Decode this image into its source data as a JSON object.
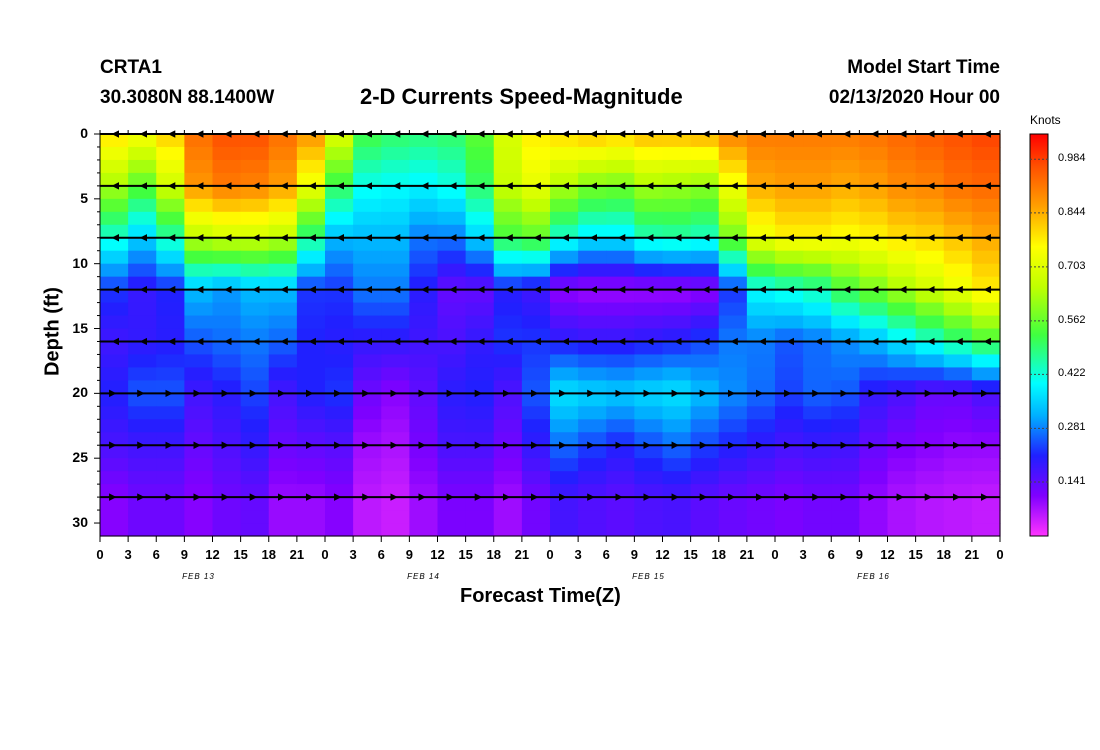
{
  "header": {
    "station": "CRTA1",
    "coords": "30.3080N 88.1400W",
    "title": "2-D Currents Speed-Magnitude",
    "start_label": "Model Start Time",
    "start_time": "02/13/2020 Hour 00"
  },
  "chart_data": {
    "type": "heatmap",
    "title": "2-D Currents Speed-Magnitude",
    "xlabel": "Forecast Time(Z)",
    "ylabel": "Depth (ft)",
    "x_range_hours": [
      0,
      96
    ],
    "y_range_ft": [
      0,
      31
    ],
    "x_tick_labels": [
      "0",
      "3",
      "6",
      "9",
      "12",
      "15",
      "18",
      "21",
      "0",
      "3",
      "6",
      "9",
      "12",
      "15",
      "18",
      "21",
      "0",
      "3",
      "6",
      "9",
      "12",
      "15",
      "18",
      "21",
      "0",
      "3",
      "6",
      "9",
      "12",
      "15",
      "18",
      "21",
      "0"
    ],
    "y_ticks": [
      0,
      5,
      10,
      15,
      20,
      25,
      30
    ],
    "date_labels": [
      {
        "label": "FEB 13",
        "hour": 10.5
      },
      {
        "label": "FEB 14",
        "hour": 34.5
      },
      {
        "label": "FEB 15",
        "hour": 58.5
      },
      {
        "label": "FEB 16",
        "hour": 82.5
      }
    ],
    "colorbar": {
      "unit": "Knots",
      "ticks": [
        "0.984",
        "0.844",
        "0.703",
        "0.562",
        "0.422",
        "0.281",
        "0.141"
      ],
      "range": [
        0,
        1.05
      ]
    },
    "depth_levels_ft": [
      0,
      4,
      8,
      12,
      16,
      20,
      24,
      28
    ],
    "speed_grid_note": "approximate speed (knots) per depth level every 3 hours",
    "speed_levels": [
      {
        "depth": 0,
        "values": [
          0.8,
          0.78,
          0.72,
          0.9,
          0.95,
          0.98,
          0.95,
          0.9,
          0.85,
          0.55,
          0.5,
          0.5,
          0.48,
          0.52,
          0.58,
          0.8,
          0.75,
          0.85,
          0.8,
          0.82,
          0.85,
          0.82,
          0.88,
          0.92,
          0.9,
          0.92,
          0.9,
          0.92,
          0.92,
          0.95,
          0.95,
          0.98,
          0.98
        ]
      },
      {
        "depth": 4,
        "values": [
          0.65,
          0.6,
          0.5,
          0.85,
          0.9,
          0.92,
          0.88,
          0.85,
          0.6,
          0.42,
          0.4,
          0.4,
          0.38,
          0.45,
          0.55,
          0.78,
          0.65,
          0.62,
          0.55,
          0.6,
          0.65,
          0.58,
          0.62,
          0.85,
          0.85,
          0.88,
          0.85,
          0.85,
          0.88,
          0.9,
          0.9,
          0.95,
          0.92
        ]
      },
      {
        "depth": 8,
        "values": [
          0.45,
          0.4,
          0.3,
          0.6,
          0.7,
          0.65,
          0.7,
          0.6,
          0.35,
          0.3,
          0.35,
          0.3,
          0.25,
          0.3,
          0.4,
          0.65,
          0.45,
          0.4,
          0.35,
          0.4,
          0.48,
          0.42,
          0.45,
          0.7,
          0.75,
          0.78,
          0.75,
          0.75,
          0.78,
          0.8,
          0.8,
          0.85,
          0.85
        ]
      },
      {
        "depth": 12,
        "values": [
          0.2,
          0.25,
          0.12,
          0.3,
          0.35,
          0.25,
          0.4,
          0.25,
          0.2,
          0.25,
          0.3,
          0.25,
          0.15,
          0.12,
          0.15,
          0.25,
          0.1,
          0.08,
          0.08,
          0.08,
          0.08,
          0.08,
          0.1,
          0.35,
          0.45,
          0.4,
          0.5,
          0.55,
          0.6,
          0.65,
          0.7,
          0.75,
          0.8
        ]
      },
      {
        "depth": 16,
        "values": [
          0.15,
          0.2,
          0.18,
          0.22,
          0.28,
          0.25,
          0.3,
          0.22,
          0.2,
          0.2,
          0.18,
          0.2,
          0.15,
          0.18,
          0.2,
          0.25,
          0.2,
          0.2,
          0.18,
          0.2,
          0.2,
          0.22,
          0.25,
          0.3,
          0.25,
          0.25,
          0.28,
          0.3,
          0.35,
          0.4,
          0.45,
          0.5,
          0.55
        ]
      },
      {
        "depth": 20,
        "values": [
          0.22,
          0.2,
          0.3,
          0.2,
          0.15,
          0.25,
          0.22,
          0.12,
          0.3,
          0.15,
          0.1,
          0.1,
          0.18,
          0.22,
          0.2,
          0.12,
          0.38,
          0.36,
          0.35,
          0.34,
          0.38,
          0.36,
          0.3,
          0.28,
          0.25,
          0.22,
          0.3,
          0.2,
          0.18,
          0.15,
          0.12,
          0.15,
          0.18
        ]
      },
      {
        "depth": 24,
        "values": [
          0.18,
          0.15,
          0.2,
          0.15,
          0.12,
          0.2,
          0.18,
          0.08,
          0.2,
          0.1,
          0.06,
          0.08,
          0.15,
          0.18,
          0.15,
          0.1,
          0.28,
          0.25,
          0.22,
          0.2,
          0.28,
          0.25,
          0.22,
          0.2,
          0.18,
          0.16,
          0.2,
          0.15,
          0.12,
          0.1,
          0.1,
          0.08,
          0.1
        ]
      },
      {
        "depth": 28,
        "values": [
          0.1,
          0.1,
          0.15,
          0.1,
          0.1,
          0.15,
          0.12,
          0.05,
          0.12,
          0.08,
          0.03,
          0.06,
          0.1,
          0.12,
          0.1,
          0.06,
          0.18,
          0.16,
          0.15,
          0.14,
          0.18,
          0.15,
          0.14,
          0.12,
          0.12,
          0.1,
          0.14,
          0.1,
          0.08,
          0.06,
          0.06,
          0.05,
          0.05
        ]
      }
    ]
  }
}
